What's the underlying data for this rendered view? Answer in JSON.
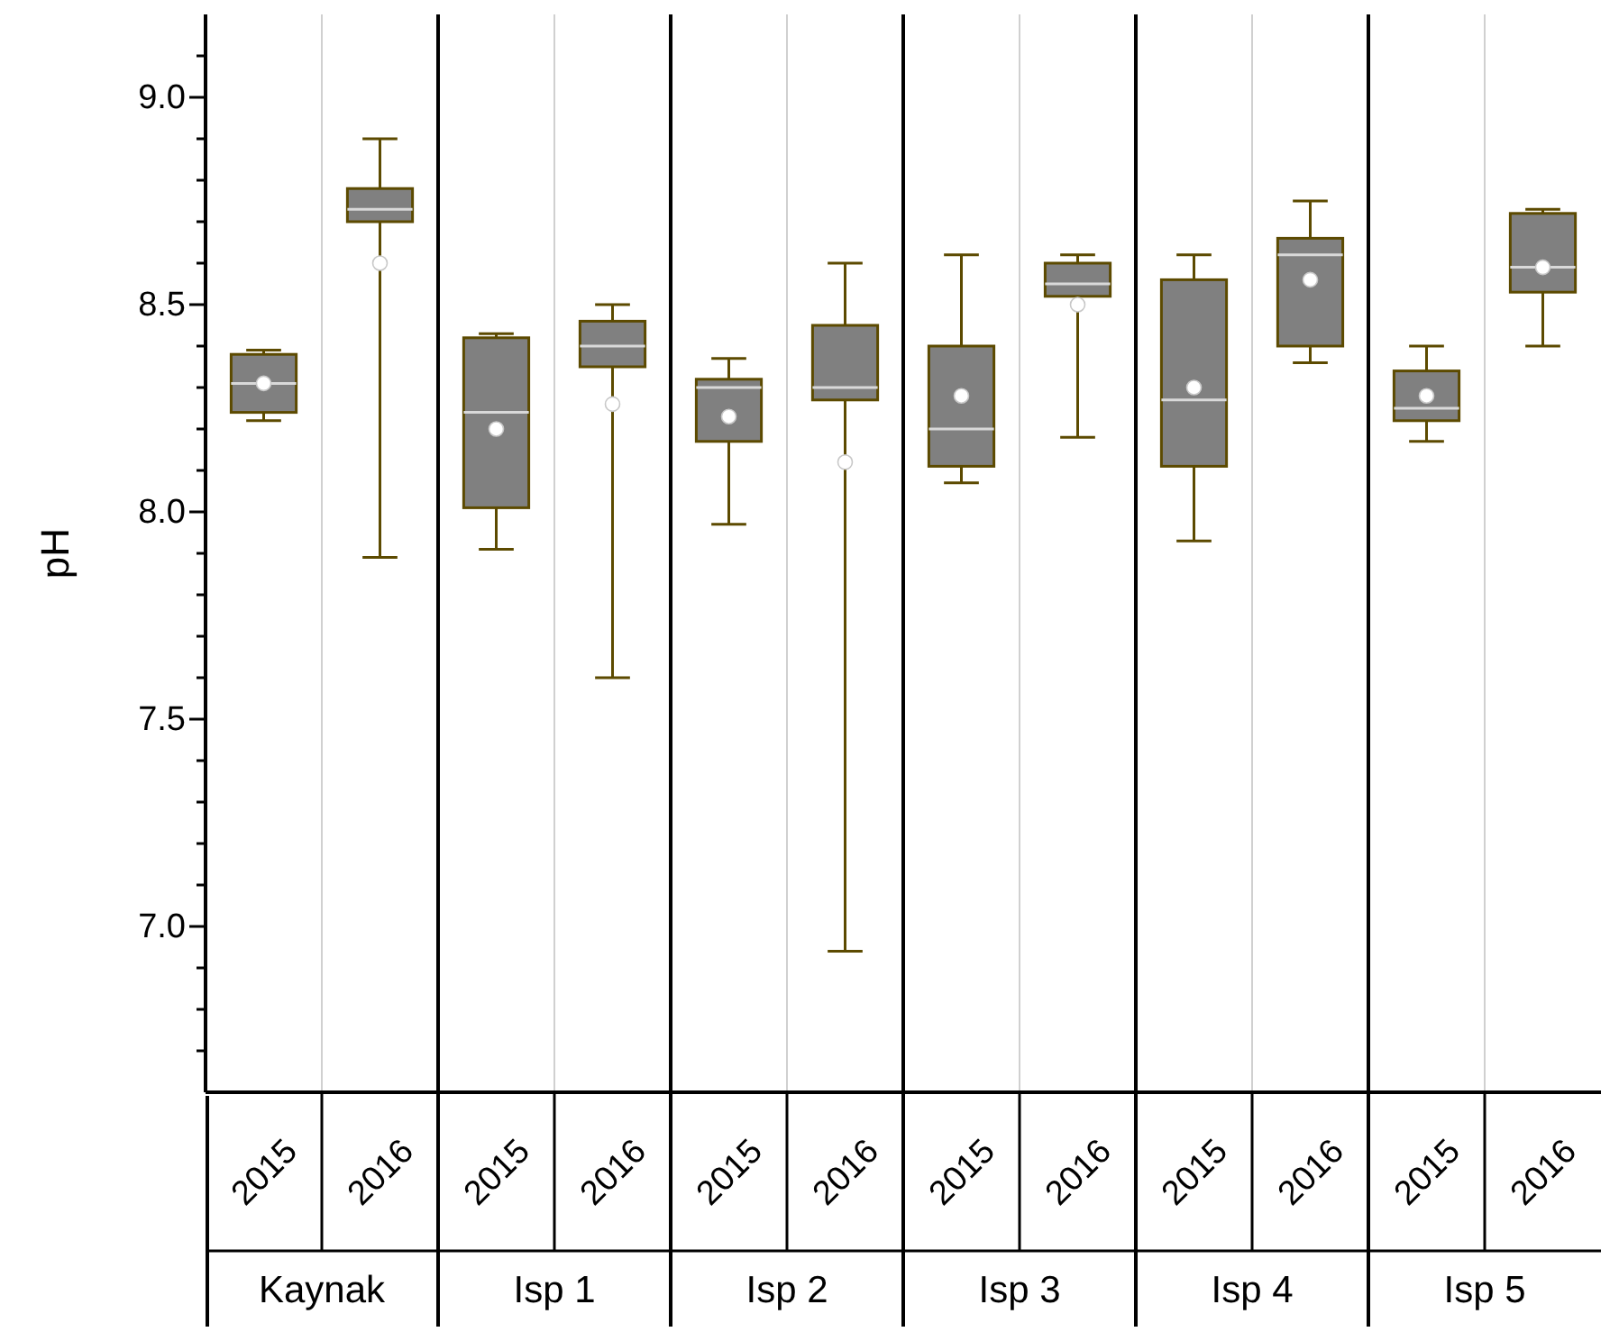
{
  "chart_data": {
    "type": "box",
    "ylabel": "pH",
    "categories": [
      "2015",
      "2016",
      "2015",
      "2016",
      "2015",
      "2016",
      "2015",
      "2016",
      "2015",
      "2016",
      "2015",
      "2016"
    ],
    "annotations": [
      "Kaynak",
      "Isp 1",
      "Isp 2",
      "Isp 3",
      "Isp 4",
      "Isp 5"
    ],
    "color": "#808080",
    "ylim": [
      6.6,
      9.2
    ],
    "yticks": [
      {
        "value": 6.7,
        "label": null
      },
      {
        "value": 6.8,
        "label": null
      },
      {
        "value": 6.9,
        "label": null
      },
      {
        "value": 7.0,
        "label": "7.0"
      },
      {
        "value": 7.1,
        "label": null
      },
      {
        "value": 7.2,
        "label": null
      },
      {
        "value": 7.3,
        "label": null
      },
      {
        "value": 7.4,
        "label": null
      },
      7.5,
      {
        "value": 7.6,
        "label": null
      },
      {
        "value": 7.7,
        "label": null
      },
      {
        "value": 7.8,
        "label": null
      },
      {
        "value": 7.9,
        "label": null
      },
      {
        "value": 8.0,
        "label": "8.0"
      },
      {
        "value": 8.1,
        "label": null
      },
      {
        "value": 8.2,
        "label": null
      },
      {
        "value": 8.3,
        "label": null
      },
      {
        "value": 8.4,
        "label": null
      },
      8.5,
      {
        "value": 8.6,
        "label": null
      },
      {
        "value": 8.7,
        "label": null
      },
      {
        "value": 8.8,
        "label": null
      },
      {
        "value": 8.9,
        "label": null
      },
      {
        "value": 9.0,
        "label": "9.0"
      },
      {
        "value": 9.1,
        "label": null
      }
    ],
    "boxes": [
      {
        "low": 8.22,
        "q1": 8.24,
        "median": 8.31,
        "q3": 8.38,
        "high": 8.39,
        "mean": 8.31
      },
      {
        "low": 7.89,
        "q1": 8.7,
        "median": 8.73,
        "q3": 8.78,
        "high": 8.9,
        "mean": 8.6
      },
      {
        "low": 7.91,
        "q1": 8.01,
        "median": 8.24,
        "q3": 8.42,
        "high": 8.43,
        "mean": 8.2
      },
      {
        "low": 7.6,
        "q1": 8.35,
        "median": 8.4,
        "q3": 8.46,
        "high": 8.5,
        "mean": 8.26
      },
      {
        "low": 7.97,
        "q1": 8.17,
        "median": 8.3,
        "q3": 8.32,
        "high": 8.37,
        "mean": 8.23
      },
      {
        "low": 6.94,
        "q1": 8.27,
        "median": 8.3,
        "q3": 8.45,
        "high": 8.6,
        "mean": 8.12
      },
      {
        "low": 8.07,
        "q1": 8.11,
        "median": 8.2,
        "q3": 8.4,
        "high": 8.62,
        "mean": 8.28
      },
      {
        "low": 8.18,
        "q1": 8.52,
        "median": 8.55,
        "q3": 8.6,
        "high": 8.62,
        "mean": 8.5
      },
      {
        "low": 7.93,
        "q1": 8.11,
        "median": 8.27,
        "q3": 8.56,
        "high": 8.62,
        "mean": 8.3
      },
      {
        "low": 8.36,
        "q1": 8.4,
        "median": 8.62,
        "q3": 8.66,
        "high": 8.75,
        "mean": 8.56
      },
      {
        "low": 8.17,
        "q1": 8.22,
        "median": 8.25,
        "q3": 8.34,
        "high": 8.4,
        "mean": 8.28
      },
      {
        "low": 8.4,
        "q1": 8.53,
        "median": 8.59,
        "q3": 8.72,
        "high": 8.73,
        "mean": 8.59
      }
    ]
  }
}
